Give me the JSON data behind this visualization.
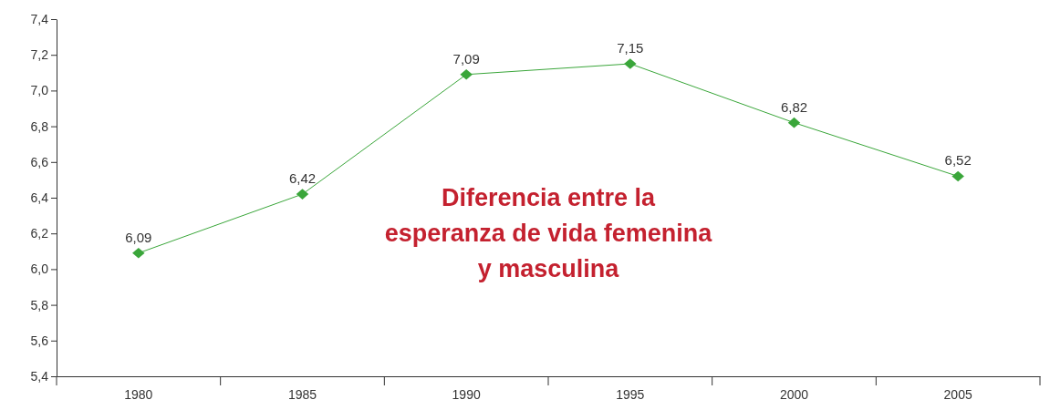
{
  "chart_data": {
    "type": "line",
    "title": "Diferencia entre la\nesperanza de vida femenina\ny masculina",
    "categories": [
      "1980",
      "1985",
      "1990",
      "1995",
      "2000",
      "2005"
    ],
    "series": [
      {
        "color": "#3aa63a",
        "values": [
          6.09,
          6.42,
          7.09,
          7.15,
          6.82,
          6.52
        ],
        "value_labels": [
          "6,09",
          "6,42",
          "7,09",
          "7,15",
          "6,82",
          "6,52"
        ]
      }
    ],
    "ylim": [
      5.4,
      7.4
    ],
    "yticks": [
      {
        "value": 5.4,
        "label": "5,4"
      },
      {
        "value": 5.6,
        "label": "5,6"
      },
      {
        "value": 5.8,
        "label": "5,8"
      },
      {
        "value": 6.0,
        "label": "6,0"
      },
      {
        "value": 6.2,
        "label": "6,2"
      },
      {
        "value": 6.4,
        "label": "6,4"
      },
      {
        "value": 6.6,
        "label": "6,6"
      },
      {
        "value": 6.8,
        "label": "6,8"
      },
      {
        "value": 7.0,
        "label": "7,0"
      },
      {
        "value": 7.2,
        "label": "7,2"
      },
      {
        "value": 7.4,
        "label": "7,4"
      }
    ],
    "grid": false,
    "marker": "diamond",
    "line_style": "solid"
  }
}
